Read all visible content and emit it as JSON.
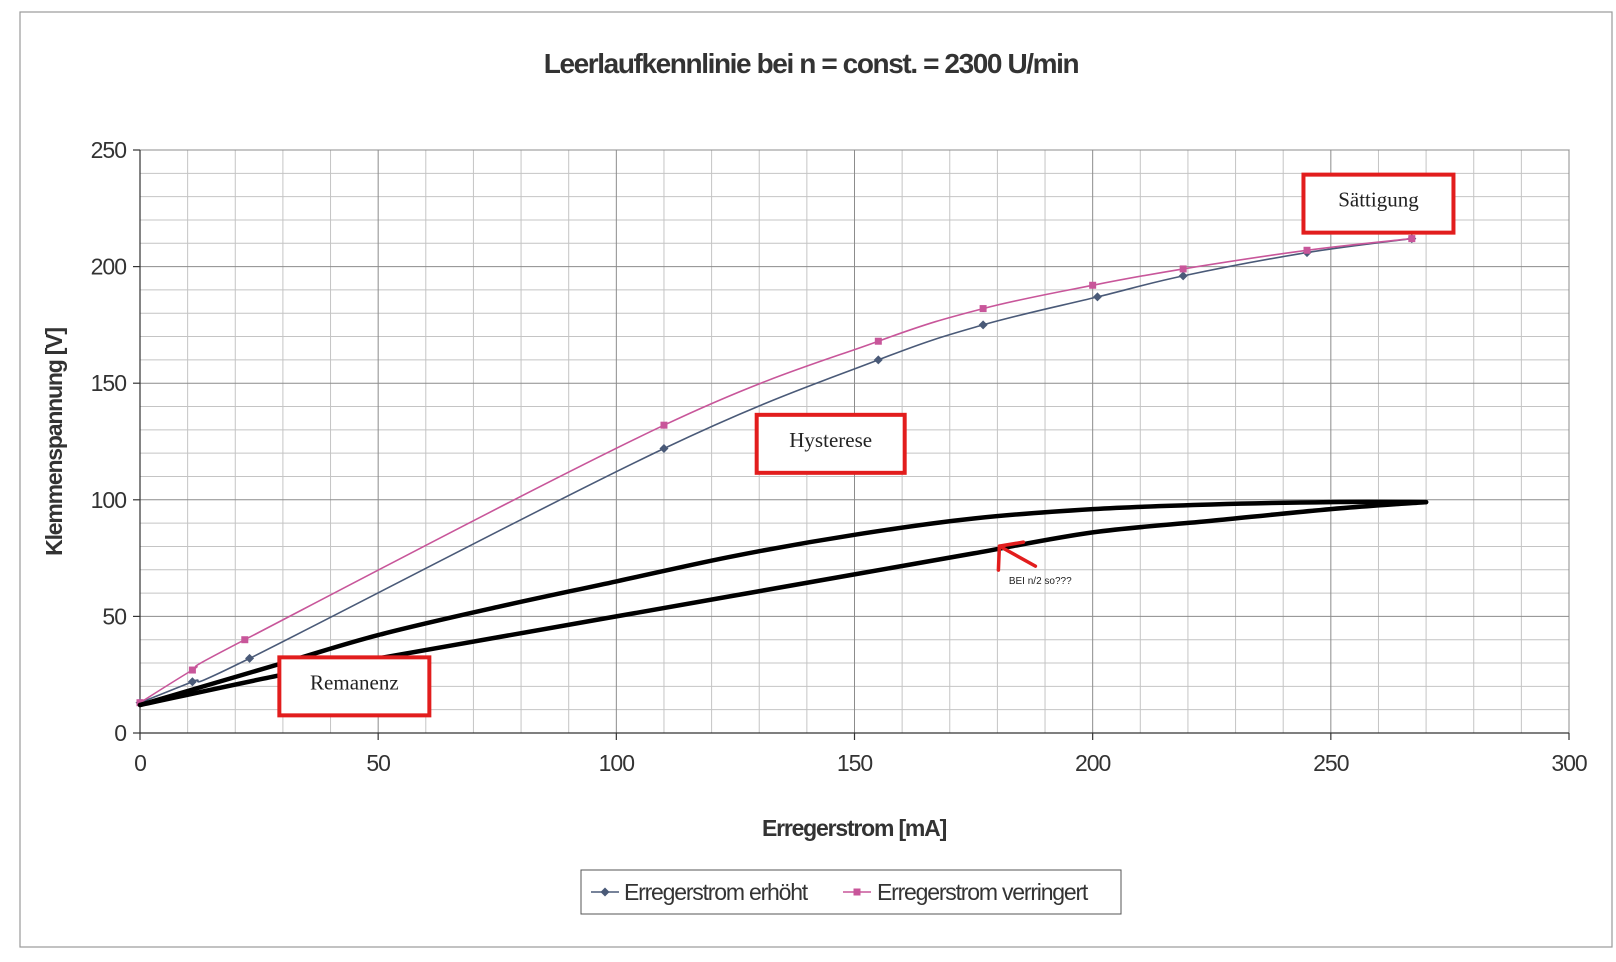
{
  "chart_data": {
    "type": "line",
    "title": "Leerlaufkennlinie bei n = const. = 2300 U/min",
    "xlabel": "Erregerstrom [mA]",
    "ylabel": "Klemmenspannung [V]",
    "xlim": [
      0,
      300
    ],
    "ylim": [
      0,
      250
    ],
    "xticks": [
      0,
      50,
      100,
      150,
      200,
      250,
      300
    ],
    "yticks": [
      0,
      50,
      100,
      150,
      200,
      250
    ],
    "x_minor_step": 10,
    "y_minor_step": 10,
    "grid": true,
    "legend_position": "bottom-center",
    "series": [
      {
        "name": "Erregerstrom erhöht",
        "color": "#4a5a78",
        "marker": "diamond",
        "x": [
          0,
          11,
          23,
          110,
          155,
          177,
          201,
          219,
          245,
          267
        ],
        "y": [
          13,
          22,
          32,
          122,
          160,
          175,
          187,
          196,
          206,
          212
        ]
      },
      {
        "name": "Erregerstrom verringert",
        "color": "#c8569a",
        "marker": "square",
        "x": [
          0,
          11,
          22,
          110,
          155,
          177,
          200,
          219,
          245,
          267
        ],
        "y": [
          13,
          27,
          40,
          132,
          168,
          182,
          192,
          199,
          207,
          212
        ]
      },
      {
        "color": "#000000",
        "marker": "none",
        "x": [
          0,
          30,
          50,
          75,
          100,
          125,
          150,
          175,
          200,
          225,
          250,
          270
        ],
        "y": [
          12,
          30,
          42,
          54,
          65,
          76,
          85,
          92,
          96,
          98,
          99,
          99
        ]
      },
      {
        "color": "#000000",
        "marker": "none",
        "x": [
          0,
          30,
          50,
          75,
          100,
          125,
          150,
          175,
          200,
          225,
          250,
          270
        ],
        "y": [
          12,
          25,
          32,
          41,
          50,
          59,
          68,
          77,
          86,
          91,
          96,
          99
        ]
      }
    ],
    "annotations": [
      {
        "text": "Sättigung",
        "x": 260,
        "y": 227
      },
      {
        "text": "Hysterese",
        "x": 145,
        "y": 124
      },
      {
        "text": "Remanenz",
        "x": 45,
        "y": 20
      },
      {
        "text": "BEI n/2 so???",
        "x": 189,
        "y": 64,
        "arrow_to": [
          180,
          81
        ]
      }
    ]
  }
}
